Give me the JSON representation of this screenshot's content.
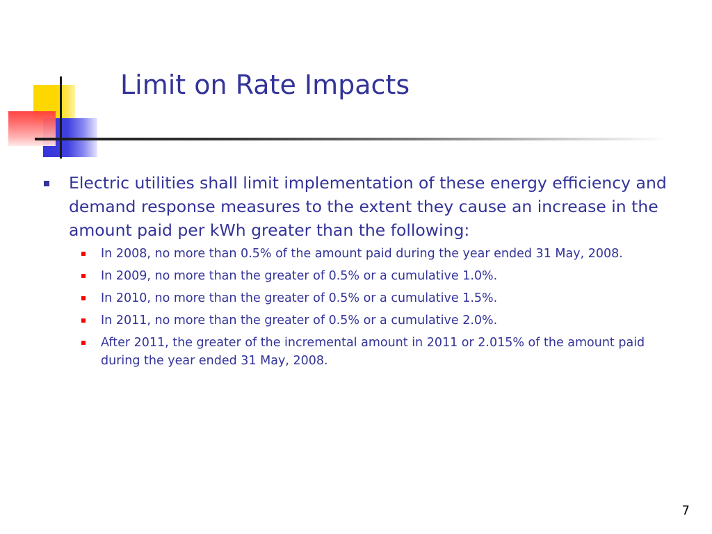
{
  "slide": {
    "title": "Limit on Rate Impacts",
    "bullet": {
      "text": "Electric utilities shall limit implementation of these energy efficiency and demand response measures to the extent they cause an increase in the amount paid per kWh greater than the following:",
      "sub_items": [
        "In 2008, no more than 0.5% of the amount paid during the year ended 31 May, 2008.",
        "In 2009, no more than the greater of 0.5% or a cumulative 1.0%.",
        "In 2010, no more than the greater of 0.5% or a cumulative 1.5%.",
        "In 2011, no more than the greater of 0.5% or a cumulative 2.0%.",
        "After 2011, the greater of the incremental amount in 2011 or 2.015% of the amount paid during the year ended 31 May, 2008."
      ]
    },
    "page_number": "7"
  },
  "colors": {
    "title": "#333399",
    "body_text": "#333399",
    "main_bullet": "#333399",
    "sub_bullet": "#ff0000",
    "logo_yellow": "#ffd700",
    "logo_red": "#ff3a3a",
    "logo_blue": "#3535d8"
  }
}
